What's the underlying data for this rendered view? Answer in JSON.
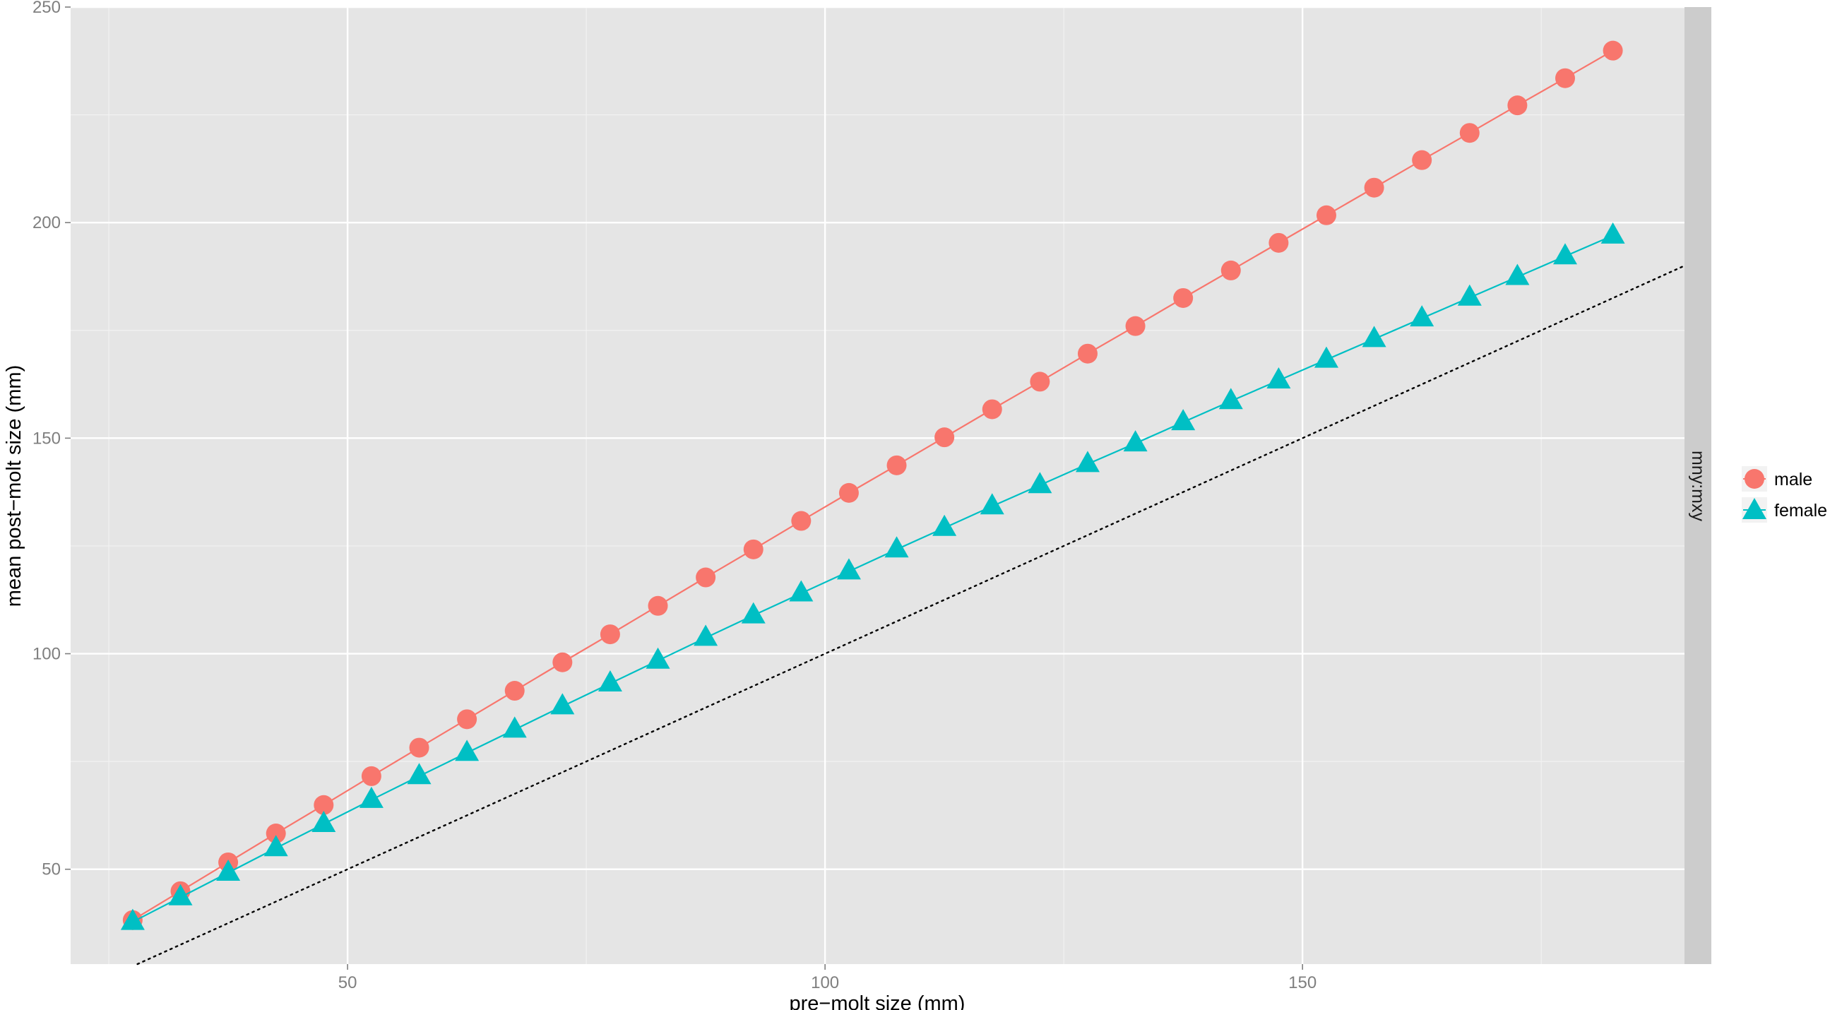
{
  "chart_data": {
    "type": "line",
    "title": "",
    "xlabel": "pre−molt size (mm)",
    "ylabel": "mean post−molt size (mm)",
    "xlim": [
      21,
      190
    ],
    "ylim": [
      28,
      250
    ],
    "x_ticks": [
      50,
      100,
      150
    ],
    "y_ticks": [
      50,
      100,
      150,
      200,
      250
    ],
    "x_tick_labels": [
      "50",
      "100",
      "150"
    ],
    "y_tick_labels": [
      "50",
      "100",
      "150",
      "200",
      "250"
    ],
    "grid": true,
    "legend_position": "right",
    "facet_label": "mny:mxy",
    "x": [
      27.5,
      32.5,
      37.5,
      42.5,
      47.5,
      52.5,
      57.5,
      62.5,
      67.5,
      72.5,
      77.5,
      82.5,
      87.5,
      92.5,
      97.5,
      102.5,
      107.5,
      112.5,
      117.5,
      122.5,
      127.5,
      132.5,
      137.5,
      142.5,
      147.5,
      152.5,
      157.5,
      162.5,
      167.5,
      172.5,
      177.5,
      182.5
    ],
    "series": [
      {
        "name": "male",
        "color": "#F8766D",
        "marker": "circle",
        "values": [
          38.2,
          44.9,
          51.6,
          58.3,
          64.9,
          71.6,
          78.2,
          84.8,
          91.4,
          98.0,
          104.5,
          111.1,
          117.7,
          124.2,
          130.8,
          137.3,
          143.7,
          150.2,
          156.7,
          163.1,
          169.6,
          176.0,
          182.5,
          188.9,
          195.3,
          201.7,
          208.1,
          214.5,
          220.8,
          227.2,
          233.5,
          239.9
        ]
      },
      {
        "name": "female",
        "color": "#00BFC4",
        "marker": "triangle",
        "values": [
          37.8,
          43.5,
          49.2,
          54.9,
          60.5,
          66.1,
          71.6,
          77.0,
          82.4,
          87.8,
          93.1,
          98.4,
          103.7,
          108.9,
          114.0,
          119.1,
          124.2,
          129.2,
          134.2,
          139.1,
          144.0,
          148.8,
          153.7,
          158.6,
          163.4,
          168.2,
          173.0,
          177.8,
          182.6,
          187.4,
          192.2,
          197.0
        ]
      }
    ],
    "reference_line": {
      "style": "dotted",
      "color": "#000000",
      "slope": 1,
      "intercept": 0
    }
  }
}
